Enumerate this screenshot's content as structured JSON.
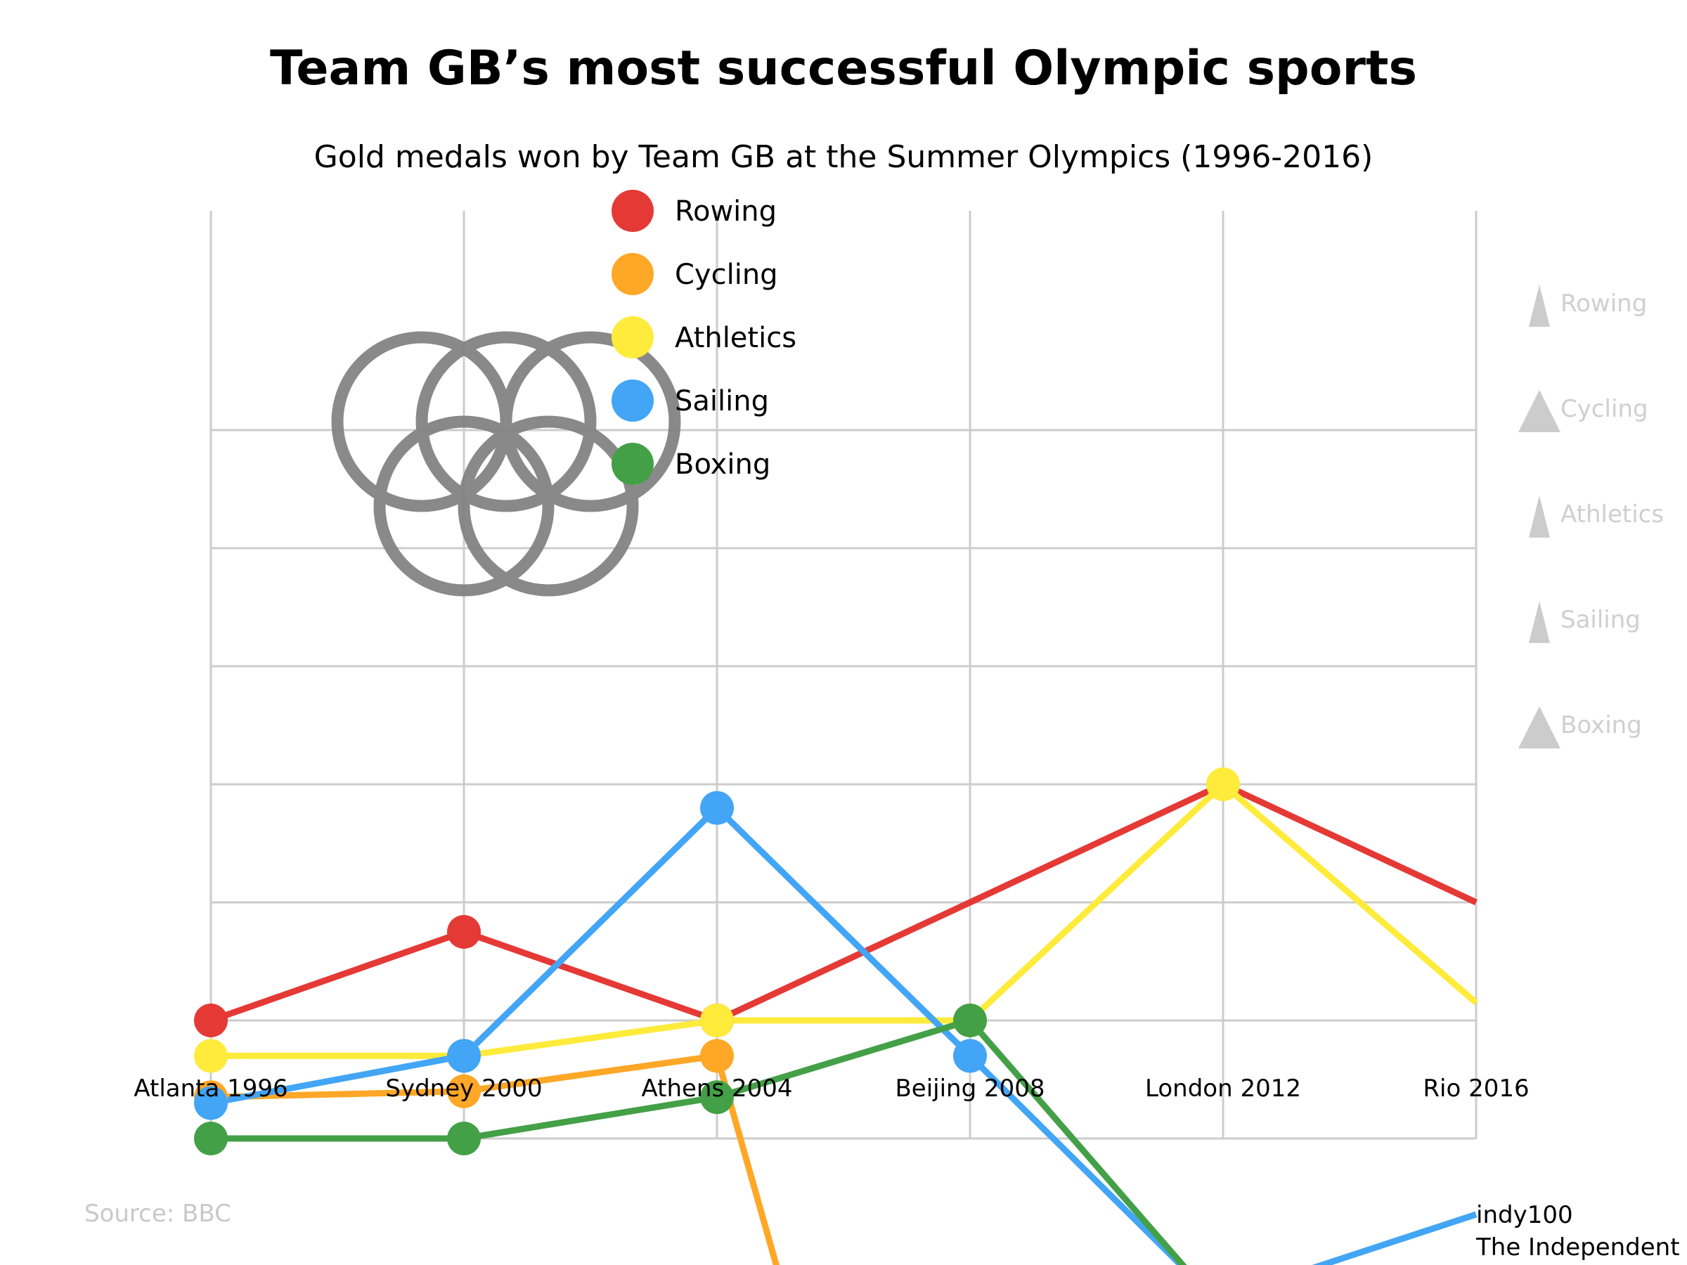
{
  "chart_data": {
    "type": "line",
    "title": "Team GB’s most successful Olympic sports",
    "subtitle": "Gold medals won by Team GB at the Summer Olympics (1996-2016)",
    "categories": [
      "Atlanta 1996",
      "Sydney 2000",
      "Athens 2004",
      "Beijing 2008",
      "London 2012",
      "Rio 2016"
    ],
    "series": [
      {
        "name": "Rowing",
        "color": "#e53935",
        "values": [
          1.0,
          1.75,
          1.0,
          null,
          3.0,
          2.0
        ]
      },
      {
        "name": "Cycling",
        "color": "#ffa726",
        "values": [
          0.35,
          0.4,
          0.7,
          null,
          null,
          null
        ]
      },
      {
        "name": "Athletics",
        "color": "#ffeb3b",
        "values": [
          0.7,
          0.7,
          1.0,
          1.0,
          3.0,
          1.15
        ]
      },
      {
        "name": "Sailing",
        "color": "#42a5f5",
        "values": [
          0.3,
          0.7,
          2.8,
          0.7,
          null,
          null
        ]
      },
      {
        "name": "Boxing",
        "color": "#43a047",
        "values": [
          0.0,
          0.0,
          0.35,
          1.0,
          null,
          null
        ]
      }
    ],
    "legend_position": "top-left",
    "grid": true,
    "side_labels": [
      "Rowing",
      "Cycling",
      "Athletics",
      "Sailing",
      "Boxing"
    ],
    "side_icon_color": "#cccccc"
  },
  "source": "Source: BBC",
  "credit": {
    "brand": "indy100",
    "publisher": "The Independent"
  },
  "olympic_rings_icon": "olympic-rings-icon",
  "ring_color": "#808080"
}
